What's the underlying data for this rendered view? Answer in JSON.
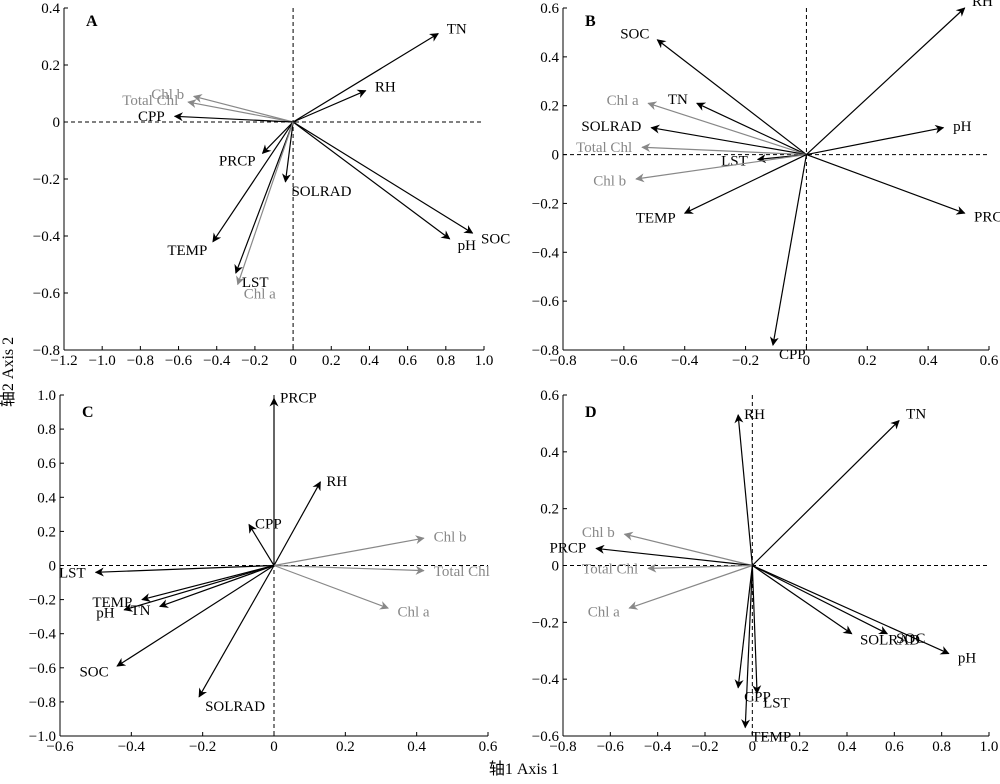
{
  "figure": {
    "ylabel": "轴2 Axis 2",
    "xlabel": "轴1 Axis 1"
  },
  "colors": {
    "primary": "#000000",
    "secondary": "#888888"
  },
  "chart_data": [
    {
      "type": "biplot",
      "panel_label": "A",
      "xlim": [
        -1.2,
        1.0
      ],
      "ylim": [
        -0.8,
        0.4
      ],
      "xticks": [
        "−1.2",
        "−1.0",
        "−0.8",
        "−0.6",
        "−0.4",
        "−0.2",
        "0",
        "0.2",
        "0.4",
        "0.6",
        "0.8",
        "1.0"
      ],
      "yticks": [
        "−0.8",
        "−0.6",
        "−0.4",
        "−0.2",
        "0",
        "0.2",
        "0.4"
      ],
      "vectors": [
        {
          "name": "TN",
          "x": 0.76,
          "y": 0.31,
          "group": "primary"
        },
        {
          "name": "RH",
          "x": 0.38,
          "y": 0.11,
          "group": "primary"
        },
        {
          "name": "SOC",
          "x": 0.94,
          "y": -0.39,
          "group": "primary"
        },
        {
          "name": "pH",
          "x": 0.82,
          "y": -0.41,
          "group": "primary"
        },
        {
          "name": "Chl b",
          "x": -0.52,
          "y": 0.09,
          "group": "secondary"
        },
        {
          "name": "Total Chl",
          "x": -0.55,
          "y": 0.07,
          "group": "secondary"
        },
        {
          "name": "CPP",
          "x": -0.62,
          "y": 0.02,
          "group": "primary"
        },
        {
          "name": "PRCP",
          "x": -0.16,
          "y": -0.11,
          "group": "primary"
        },
        {
          "name": "SOLRAD",
          "x": -0.04,
          "y": -0.21,
          "group": "primary"
        },
        {
          "name": "TEMP",
          "x": -0.42,
          "y": -0.42,
          "group": "primary"
        },
        {
          "name": "LST",
          "x": -0.3,
          "y": -0.53,
          "group": "primary"
        },
        {
          "name": "Chl a",
          "x": -0.29,
          "y": -0.57,
          "group": "secondary"
        }
      ]
    },
    {
      "type": "biplot",
      "panel_label": "B",
      "xlim": [
        -0.8,
        0.6
      ],
      "ylim": [
        -0.8,
        0.6
      ],
      "xticks": [
        "−0.8",
        "−0.6",
        "−0.4",
        "−0.2",
        "0",
        "0.2",
        "0.4",
        "0.6"
      ],
      "yticks": [
        "−0.8",
        "−0.6",
        "−0.4",
        "−0.2",
        "0",
        "0.2",
        "0.4",
        "0.6"
      ],
      "vectors": [
        {
          "name": "RH",
          "x": 0.52,
          "y": 0.6,
          "group": "primary"
        },
        {
          "name": "SOC",
          "x": -0.49,
          "y": 0.47,
          "group": "primary"
        },
        {
          "name": "TN",
          "x": -0.36,
          "y": 0.21,
          "group": "primary"
        },
        {
          "name": "Chl a",
          "x": -0.52,
          "y": 0.21,
          "group": "secondary"
        },
        {
          "name": "SOLRAD",
          "x": -0.51,
          "y": 0.11,
          "group": "primary"
        },
        {
          "name": "pH",
          "x": 0.45,
          "y": 0.11,
          "group": "primary"
        },
        {
          "name": "Total Chl",
          "x": -0.54,
          "y": 0.03,
          "group": "secondary"
        },
        {
          "name": "LST",
          "x": -0.16,
          "y": -0.02,
          "group": "primary"
        },
        {
          "name": "Chl b",
          "x": -0.56,
          "y": -0.1,
          "group": "secondary"
        },
        {
          "name": "TEMP",
          "x": -0.4,
          "y": -0.24,
          "group": "primary"
        },
        {
          "name": "PRCP",
          "x": 0.52,
          "y": -0.24,
          "group": "primary"
        },
        {
          "name": "CPP",
          "x": -0.11,
          "y": -0.78,
          "group": "primary"
        }
      ]
    },
    {
      "type": "biplot",
      "panel_label": "C",
      "xlim": [
        -0.6,
        0.6
      ],
      "ylim": [
        -1.0,
        1.0
      ],
      "xticks": [
        "−0.6",
        "−0.4",
        "−0.2",
        "0",
        "0.2",
        "0.4",
        "0.6"
      ],
      "yticks": [
        "−1.0",
        "−0.8",
        "−0.6",
        "−0.4",
        "−0.2",
        "0",
        "0.2",
        "0.4",
        "0.6",
        "0.8",
        "1.0"
      ],
      "vectors": [
        {
          "name": "PRCP",
          "x": 0.0,
          "y": 0.98,
          "group": "primary"
        },
        {
          "name": "RH",
          "x": 0.13,
          "y": 0.49,
          "group": "primary"
        },
        {
          "name": "CPP",
          "x": -0.07,
          "y": 0.24,
          "group": "primary"
        },
        {
          "name": "Chl b",
          "x": 0.42,
          "y": 0.16,
          "group": "secondary"
        },
        {
          "name": "Total Chl",
          "x": 0.42,
          "y": -0.03,
          "group": "secondary"
        },
        {
          "name": "Chl a",
          "x": 0.32,
          "y": -0.25,
          "group": "secondary"
        },
        {
          "name": "LST",
          "x": -0.5,
          "y": -0.04,
          "group": "primary"
        },
        {
          "name": "TEMP",
          "x": -0.37,
          "y": -0.2,
          "group": "primary"
        },
        {
          "name": "pH",
          "x": -0.42,
          "y": -0.26,
          "group": "primary"
        },
        {
          "name": "TN",
          "x": -0.32,
          "y": -0.24,
          "group": "primary"
        },
        {
          "name": "SOC",
          "x": -0.44,
          "y": -0.59,
          "group": "primary"
        },
        {
          "name": "SOLRAD",
          "x": -0.21,
          "y": -0.77,
          "group": "primary"
        }
      ]
    },
    {
      "type": "biplot",
      "panel_label": "D",
      "xlim": [
        -0.8,
        1.0
      ],
      "ylim": [
        -0.6,
        0.6
      ],
      "xticks": [
        "−0.8",
        "−0.6",
        "−0.4",
        "−0.2",
        "0",
        "0.2",
        "0.4",
        "0.6",
        "0.8",
        "1.0"
      ],
      "yticks": [
        "−0.6",
        "−0.4",
        "−0.2",
        "0",
        "0.2",
        "0.4",
        "0.6"
      ],
      "vectors": [
        {
          "name": "RH",
          "x": -0.06,
          "y": 0.53,
          "group": "primary"
        },
        {
          "name": "TN",
          "x": 0.62,
          "y": 0.51,
          "group": "primary"
        },
        {
          "name": "Chl b",
          "x": -0.54,
          "y": 0.11,
          "group": "secondary"
        },
        {
          "name": "PRCP",
          "x": -0.66,
          "y": 0.06,
          "group": "primary"
        },
        {
          "name": "Total Chl",
          "x": -0.44,
          "y": -0.01,
          "group": "secondary"
        },
        {
          "name": "Chl a",
          "x": -0.52,
          "y": -0.15,
          "group": "secondary"
        },
        {
          "name": "SOLRAD",
          "x": 0.42,
          "y": -0.24,
          "group": "primary"
        },
        {
          "name": "SOC",
          "x": 0.57,
          "y": -0.24,
          "group": "primary"
        },
        {
          "name": "pH",
          "x": 0.83,
          "y": -0.31,
          "group": "primary"
        },
        {
          "name": "CPP",
          "x": -0.06,
          "y": -0.43,
          "group": "primary"
        },
        {
          "name": "LST",
          "x": 0.02,
          "y": -0.45,
          "group": "primary"
        },
        {
          "name": "TEMP",
          "x": -0.03,
          "y": -0.57,
          "group": "primary"
        }
      ]
    }
  ]
}
